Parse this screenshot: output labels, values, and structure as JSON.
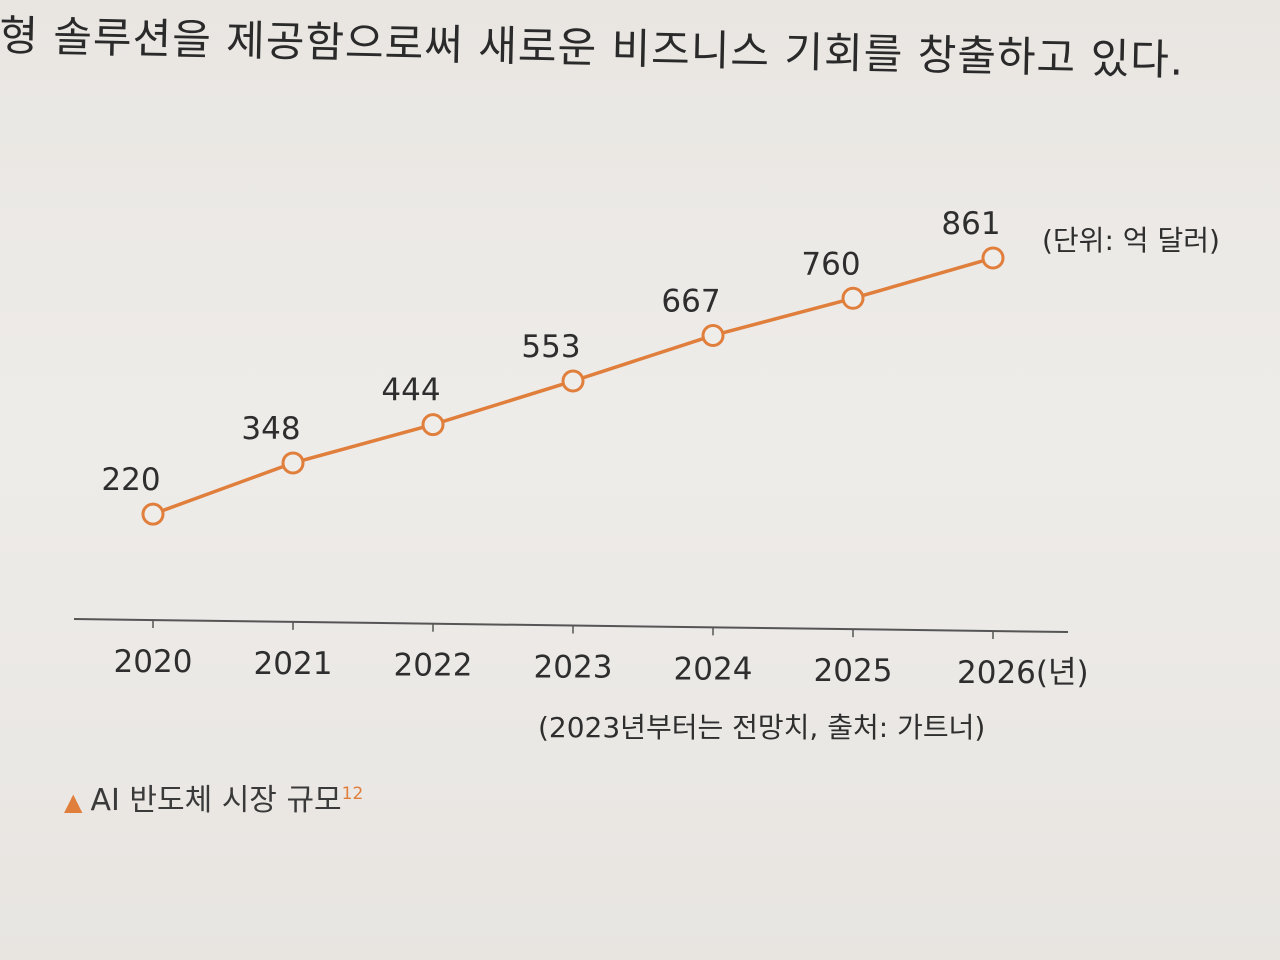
{
  "page": {
    "top_text": "형 솔루션을 제공함으로써 새로운 비즈니스 기회를 창출하고 있다.",
    "bottom_text": "",
    "caption": {
      "marker": "▲",
      "text": "AI 반도체 시장 규모",
      "footnote": "12"
    }
  },
  "chart_data": {
    "type": "line",
    "title": "",
    "categories": [
      "2020",
      "2021",
      "2022",
      "2023",
      "2024",
      "2025",
      "2026(년)"
    ],
    "series": [
      {
        "values": [
          220,
          348,
          444,
          553,
          667,
          760,
          861
        ]
      }
    ],
    "unit_note": "(단위: 억 달러)",
    "source_note": "(2023년부터는 전망치, 출처: 가트너)",
    "xlabel": "",
    "ylabel": "",
    "ylim": [
      180,
      880
    ],
    "grid": false,
    "legend": "none",
    "color": "#e07e3c"
  }
}
